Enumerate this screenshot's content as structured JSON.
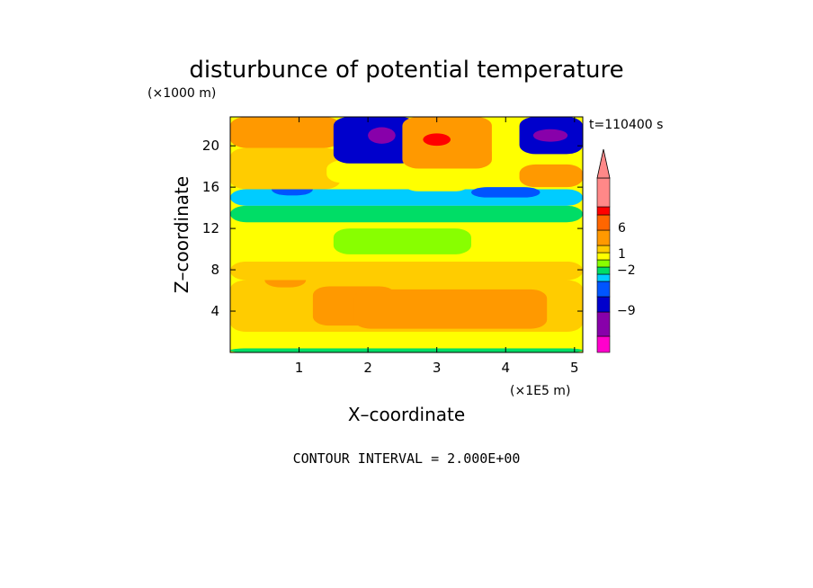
{
  "chart_data": {
    "type": "heatmap",
    "title": "disturbunce of potential temperature",
    "ylabel_unit": "(×1000 m)",
    "ylabel": "Z–coordinate",
    "xlabel": "X–coordinate",
    "xlabel_unit": "(×1E5 m)",
    "time_label": "t=110400 s",
    "footer": "CONTOUR INTERVAL = 2.000E+00",
    "xlim": [
      0,
      5.12
    ],
    "ylim": [
      0,
      22.8
    ],
    "x_ticks": [
      1,
      2,
      3,
      4,
      5
    ],
    "y_ticks": [
      4,
      8,
      12,
      16,
      20
    ],
    "colorbar": {
      "labels": [
        "6",
        "1",
        "−2",
        "−9"
      ],
      "label_values": [
        6,
        1,
        -2,
        -9
      ],
      "colors": [
        "#ff00cc",
        "#8800aa",
        "#0000cc",
        "#0055ff",
        "#00ccff",
        "#00dd66",
        "#88ff00",
        "#ffff00",
        "#ffcc00",
        "#ff9900",
        "#ff6600",
        "#ff0000",
        "#ff8888",
        "#ff8888"
      ]
    },
    "regions": [
      {
        "x": 0.0,
        "y": 0.0,
        "w": 5.12,
        "h": 0.4,
        "level": "green"
      },
      {
        "x": 0.0,
        "y": 0.4,
        "w": 5.12,
        "h": 1.6,
        "level": "yellow"
      },
      {
        "x": 0.0,
        "y": 2.0,
        "w": 5.12,
        "h": 5.0,
        "level": "light-orange"
      },
      {
        "x": 1.2,
        "y": 2.6,
        "w": 1.2,
        "h": 3.8,
        "level": "orange"
      },
      {
        "x": 1.8,
        "y": 2.3,
        "w": 2.8,
        "h": 3.8,
        "level": "orange"
      },
      {
        "x": 0.5,
        "y": 6.3,
        "w": 0.6,
        "h": 1.4,
        "level": "orange"
      },
      {
        "x": 0.0,
        "y": 7.0,
        "w": 5.12,
        "h": 1.8,
        "level": "light-orange"
      },
      {
        "x": 0.0,
        "y": 8.8,
        "w": 5.12,
        "h": 3.8,
        "level": "yellow"
      },
      {
        "x": 1.5,
        "y": 9.5,
        "w": 2.0,
        "h": 2.5,
        "level": "light-green"
      },
      {
        "x": 0.0,
        "y": 12.6,
        "w": 5.12,
        "h": 1.6,
        "level": "green"
      },
      {
        "x": 0.0,
        "y": 14.2,
        "w": 5.12,
        "h": 1.6,
        "level": "cyan"
      },
      {
        "x": 0.6,
        "y": 15.2,
        "w": 0.6,
        "h": 1.2,
        "level": "blue"
      },
      {
        "x": 3.5,
        "y": 15.0,
        "w": 1.0,
        "h": 1.0,
        "level": "blue"
      },
      {
        "x": 0.0,
        "y": 15.8,
        "w": 1.6,
        "h": 4.0,
        "level": "light-orange"
      },
      {
        "x": 1.4,
        "y": 16.4,
        "w": 2.8,
        "h": 2.2,
        "level": "yellow"
      },
      {
        "x": 2.5,
        "y": 15.6,
        "w": 1.0,
        "h": 2.0,
        "level": "yellow"
      },
      {
        "x": 4.2,
        "y": 16.0,
        "w": 0.92,
        "h": 2.2,
        "level": "orange"
      },
      {
        "x": 0.0,
        "y": 19.8,
        "w": 1.6,
        "h": 3.0,
        "level": "orange"
      },
      {
        "x": 1.5,
        "y": 18.3,
        "w": 1.2,
        "h": 4.5,
        "level": "dark-blue"
      },
      {
        "x": 2.0,
        "y": 20.2,
        "w": 0.4,
        "h": 1.6,
        "level": "purple"
      },
      {
        "x": 2.5,
        "y": 17.8,
        "w": 1.3,
        "h": 5.0,
        "level": "orange"
      },
      {
        "x": 2.8,
        "y": 20.0,
        "w": 0.4,
        "h": 1.2,
        "level": "red"
      },
      {
        "x": 3.8,
        "y": 18.6,
        "w": 0.5,
        "h": 4.2,
        "level": "yellow"
      },
      {
        "x": 4.2,
        "y": 19.2,
        "w": 0.92,
        "h": 3.6,
        "level": "dark-blue"
      },
      {
        "x": 4.4,
        "y": 20.4,
        "w": 0.5,
        "h": 1.2,
        "level": "purple"
      }
    ]
  }
}
